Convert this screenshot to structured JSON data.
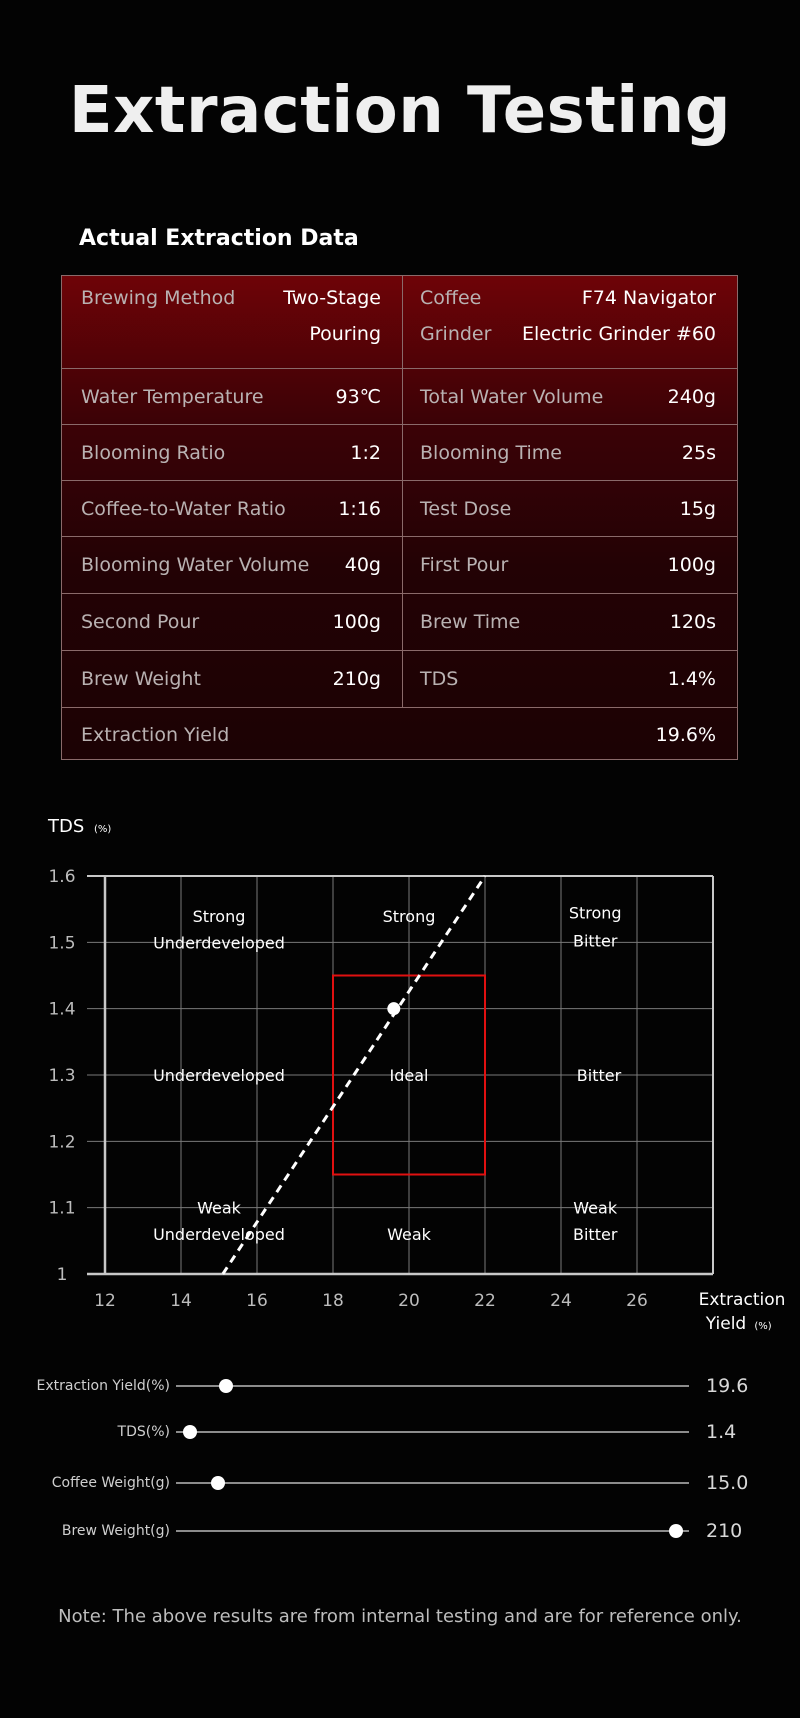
{
  "title": "Extraction Testing",
  "section_title": "Actual Extraction Data",
  "table": {
    "rows": [
      {
        "left": {
          "label": "Brewing Method",
          "value_line1": "Two-Stage",
          "value_line2": "Pouring"
        },
        "right": {
          "label_line1": "Coffee",
          "value_line1": "F74 Navigator",
          "label_line2": "Grinder",
          "value_line2": "Electric Grinder #60"
        }
      },
      {
        "left": {
          "label": "Water Temperature",
          "value": "93℃"
        },
        "right": {
          "label": "Total Water Volume",
          "value": "240g"
        }
      },
      {
        "left": {
          "label": "Blooming Ratio",
          "value": "1:2"
        },
        "right": {
          "label": "Blooming Time",
          "value": "25s"
        }
      },
      {
        "left": {
          "label": "Coffee-to-Water Ratio",
          "value": "1:16"
        },
        "right": {
          "label": "Test Dose",
          "value": "15g"
        }
      },
      {
        "left": {
          "label": "Blooming Water Volume",
          "value": "40g"
        },
        "right": {
          "label": "First Pour",
          "value": "100g"
        }
      },
      {
        "left": {
          "label": "Second Pour",
          "value": "100g"
        },
        "right": {
          "label": "Brew Time",
          "value": "120s"
        }
      },
      {
        "left": {
          "label": "Brew Weight",
          "value": "210g"
        },
        "right": {
          "label": "TDS",
          "value": "1.4%"
        }
      },
      {
        "full": {
          "label": "Extraction Yield",
          "value": "19.6%"
        }
      }
    ]
  },
  "chart_data": {
    "type": "scatter",
    "ylabel": "TDS",
    "ylabel_unit": "(%)",
    "xlabel_line1": "Extraction",
    "xlabel_line2": "Yield",
    "xlabel_unit": "(%)",
    "xlim": [
      12,
      28
    ],
    "ylim": [
      1.0,
      1.6
    ],
    "x_ticks": [
      "12",
      "14",
      "16",
      "18",
      "20",
      "22",
      "24",
      "26"
    ],
    "x_tick_values": [
      12,
      14,
      16,
      18,
      20,
      22,
      24,
      26
    ],
    "y_ticks": [
      "1.6",
      "1.5",
      "1.4",
      "1.3",
      "1.2",
      "1.1",
      "1"
    ],
    "y_tick_values": [
      1.6,
      1.5,
      1.4,
      1.3,
      1.2,
      1.1,
      1.0
    ],
    "grid": true,
    "ideal_box": {
      "x": [
        18,
        22
      ],
      "y": [
        1.15,
        1.45
      ],
      "color": "#e01010"
    },
    "brew_ratio_line": {
      "points": [
        [
          15.1,
          1.0
        ],
        [
          22.0,
          1.6
        ]
      ],
      "style": "dashed"
    },
    "point": {
      "x": 19.6,
      "y": 1.4
    },
    "zones": [
      {
        "text": "Strong",
        "x": 15.0,
        "y": 1.54
      },
      {
        "text": "Underdeveloped",
        "x": 15.0,
        "y": 1.5
      },
      {
        "text": "Strong",
        "x": 20.0,
        "y": 1.54
      },
      {
        "text": "Strong",
        "x": 24.9,
        "y": 1.545
      },
      {
        "text": "Bitter",
        "x": 24.9,
        "y": 1.503
      },
      {
        "text": "Underdeveloped",
        "x": 15.0,
        "y": 1.3
      },
      {
        "text": "Ideal",
        "x": 20.0,
        "y": 1.3
      },
      {
        "text": "Bitter",
        "x": 25.0,
        "y": 1.3
      },
      {
        "text": "Weak",
        "x": 15.0,
        "y": 1.1
      },
      {
        "text": "Underdeveloped",
        "x": 15.0,
        "y": 1.06
      },
      {
        "text": "Weak",
        "x": 20.0,
        "y": 1.06
      },
      {
        "text": "Weak",
        "x": 24.9,
        "y": 1.1
      },
      {
        "text": "Bitter",
        "x": 24.9,
        "y": 1.06
      }
    ]
  },
  "sliders": [
    {
      "label": "Extraction Yield(%)",
      "value": "19.6",
      "fill": 0.097
    },
    {
      "label": "TDS(%)",
      "value": "1.4",
      "fill": 0.027
    },
    {
      "label": "Coffee Weight(g)",
      "value": "15.0",
      "fill": 0.082
    },
    {
      "label": "Brew Weight(g)",
      "value": "210",
      "fill": 0.975
    }
  ],
  "note": "Note: The above results are from internal testing and are for reference only."
}
